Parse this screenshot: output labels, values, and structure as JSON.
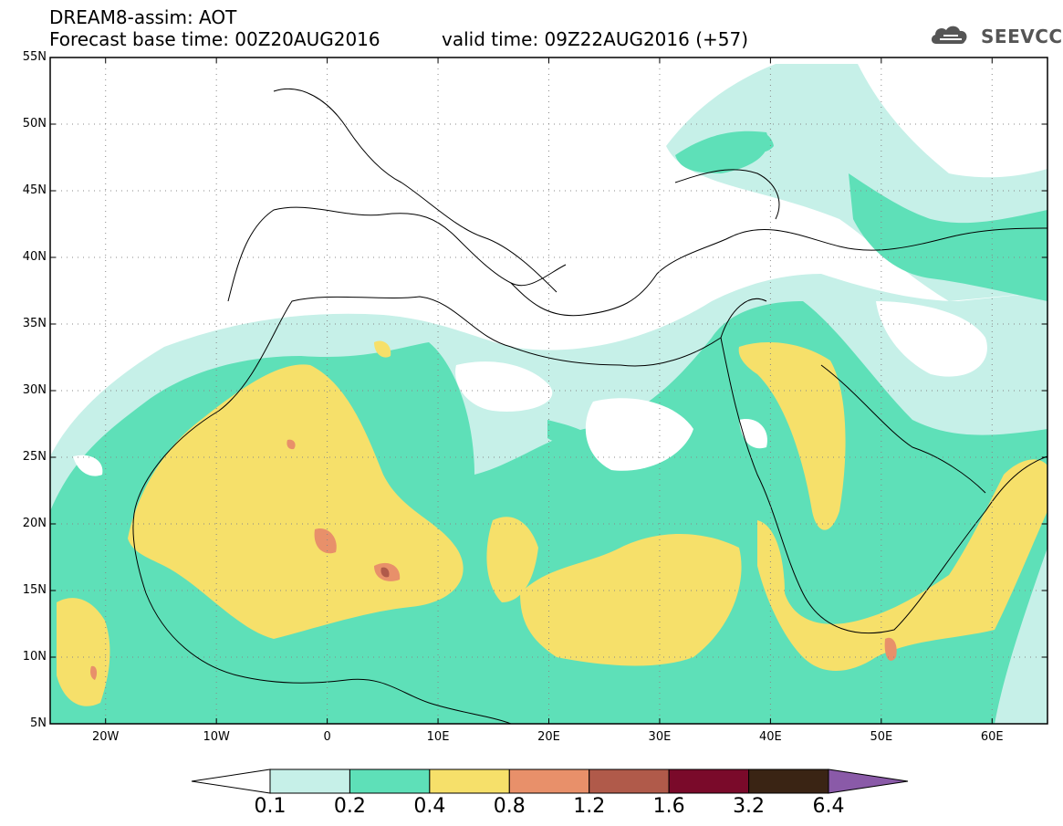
{
  "title": {
    "line1": "DREAM8-assim: AOT",
    "line2": "Forecast base time: 00Z20AUG2016",
    "valid": "valid time: 09Z22AUG2016 (+57)"
  },
  "logo": {
    "text": "SEEVCCC",
    "icon": "cloud-icon"
  },
  "map": {
    "lon_range": [
      -25,
      65
    ],
    "lat_range": [
      5,
      55
    ],
    "lat_ticks": [
      "55N",
      "50N",
      "45N",
      "40N",
      "35N",
      "30N",
      "25N",
      "20N",
      "15N",
      "10N",
      "5N"
    ],
    "lon_ticks": [
      "20W",
      "10W",
      "0",
      "10E",
      "20E",
      "30E",
      "40E",
      "50E",
      "60E"
    ]
  },
  "colorbar": {
    "labels": [
      "0.1",
      "0.2",
      "0.4",
      "0.8",
      "1.2",
      "1.6",
      "3.2",
      "6.4"
    ],
    "colors": [
      "#c6f0e8",
      "#5ee0b8",
      "#f6e06a",
      "#e8906a",
      "#b05a4a",
      "#7a0a2a",
      "#3a2414",
      "#8a5aa8"
    ]
  }
}
